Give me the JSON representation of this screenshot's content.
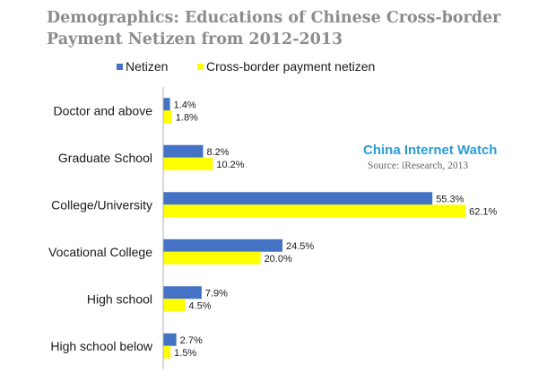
{
  "title_line1": "Demographics: Educations of Chinese Cross-border",
  "title_line2": "Payment Netizen  from 2012-2013",
  "watermark": {
    "brand": "China Internet Watch",
    "source": "Source: iResearch,  2013"
  },
  "colors": {
    "netizen": "#4472c4",
    "cross_border": "#ffff00",
    "axis": "#b0b0b0"
  },
  "chart_data": {
    "type": "bar",
    "orientation": "horizontal",
    "categories": [
      "Doctor and above",
      "Graduate School",
      "College/University",
      "Vocational College",
      "High school",
      "High school below"
    ],
    "series": [
      {
        "name": "Netizen",
        "values": [
          1.4,
          8.2,
          55.3,
          24.5,
          7.9,
          2.7
        ]
      },
      {
        "name": "Cross-border payment netizen",
        "values": [
          1.8,
          10.2,
          62.1,
          20.0,
          4.5,
          1.5
        ]
      }
    ],
    "value_labels": [
      [
        "1.4%",
        "8.2%",
        "55.3%",
        "24.5%",
        "7.9%",
        "2.7%"
      ],
      [
        "1.8%",
        "10.2%",
        "62.1%",
        "20.0%",
        "4.5%",
        "1.5%"
      ]
    ],
    "xlim": [
      0,
      70
    ],
    "legend_position": "top",
    "grid": false
  }
}
